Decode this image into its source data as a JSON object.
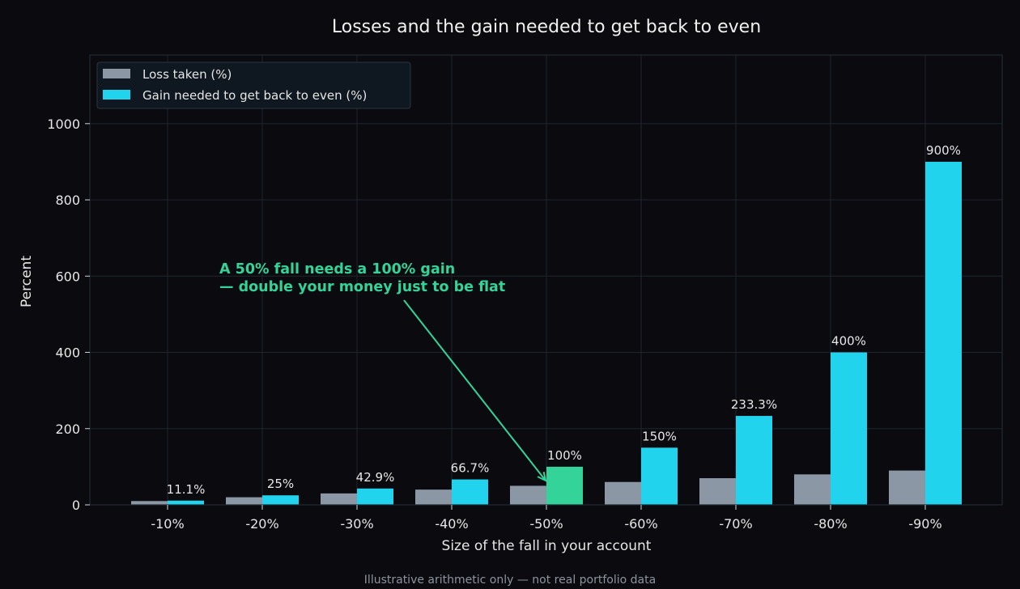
{
  "chart_data": {
    "type": "bar",
    "title": "Losses and the gain needed to get back to even",
    "xlabel": "Size of the fall in your account",
    "ylabel": "Percent",
    "categories": [
      "-10%",
      "-20%",
      "-30%",
      "-40%",
      "-50%",
      "-60%",
      "-70%",
      "-80%",
      "-90%"
    ],
    "series": [
      {
        "name": "Loss taken (%)",
        "values": [
          10,
          20,
          30,
          40,
          50,
          60,
          70,
          80,
          90
        ],
        "color": "#8b97a5"
      },
      {
        "name": "Gain needed to get back to even (%)",
        "values": [
          11.1,
          25,
          42.9,
          66.7,
          100,
          150,
          233.3,
          400,
          900
        ],
        "color": "#22d3ee"
      }
    ],
    "data_labels": [
      "11.1%",
      "25%",
      "42.9%",
      "66.7%",
      "100%",
      "150%",
      "233.3%",
      "400%",
      "900%"
    ],
    "highlight": {
      "category": "-50%",
      "color": "#34d399"
    },
    "ylim": [
      0,
      1180
    ],
    "yticks": [
      0,
      200,
      400,
      600,
      800,
      1000
    ],
    "grid": true,
    "legend_position": "top-left",
    "annotation": {
      "lines": [
        "A 50% fall needs a 100% gain",
        "— double your money just to be flat"
      ],
      "color": "#34d399",
      "target_category": "-50%"
    },
    "footnote": "Illustrative arithmetic only — not real portfolio data"
  }
}
